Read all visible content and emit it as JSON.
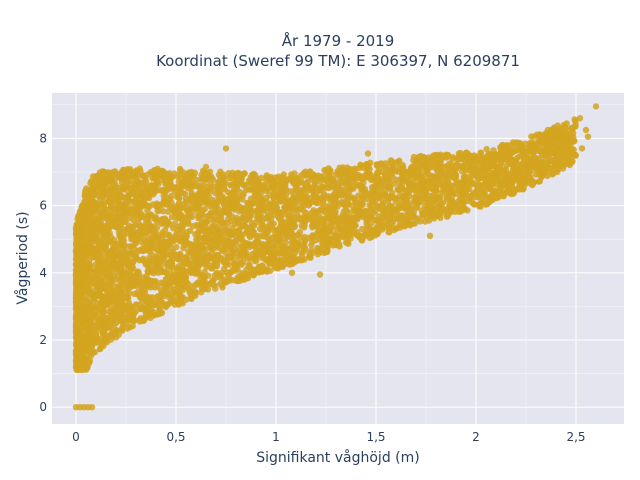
{
  "chart_data": {
    "type": "scatter",
    "title": "År 1979 - 2019",
    "subtitle": "Koordinat (Sweref 99 TM): E 306397, N 6209871",
    "xlabel": "Signifikant våghöjd (m)",
    "ylabel": "Vågperiod (s)",
    "xlim": [
      -0.12,
      2.74
    ],
    "ylim": [
      -0.5,
      9.35
    ],
    "x_ticks": [
      0,
      0.5,
      1,
      1.5,
      2,
      2.5
    ],
    "x_tick_labels": [
      "0",
      "0,5",
      "1",
      "1,5",
      "2",
      "2,5"
    ],
    "y_ticks": [
      0,
      2,
      4,
      6,
      8
    ],
    "y_tick_labels": [
      "0",
      "2",
      "4",
      "6",
      "8"
    ],
    "grid": true,
    "legend": "none",
    "colors": {
      "point": "#d4a520",
      "plot_bg": "#e5e5ef",
      "grid": "#ffffff",
      "text": "#2a3f5f"
    },
    "cloud_envelope": {
      "x": [
        0,
        0.05,
        0.1,
        0.25,
        0.5,
        0.75,
        1.0,
        1.25,
        1.5,
        1.75,
        2.0,
        2.25,
        2.5
      ],
      "y_lower": [
        1.1,
        1.1,
        1.6,
        2.3,
        3.0,
        3.6,
        4.1,
        4.6,
        5.1,
        5.5,
        5.9,
        6.5,
        7.3
      ],
      "y_upper": [
        5.4,
        6.6,
        7.0,
        7.1,
        7.1,
        7.0,
        6.9,
        7.1,
        7.3,
        7.5,
        7.6,
        8.0,
        8.6
      ]
    },
    "outliers": [
      {
        "x": 0.0,
        "y": 0.0
      },
      {
        "x": 0.02,
        "y": 0.0
      },
      {
        "x": 0.04,
        "y": 0.0
      },
      {
        "x": 0.06,
        "y": 0.0
      },
      {
        "x": 0.08,
        "y": 0.0
      },
      {
        "x": 0.75,
        "y": 7.7
      },
      {
        "x": 0.82,
        "y": 6.9
      },
      {
        "x": 0.65,
        "y": 7.15
      },
      {
        "x": 1.46,
        "y": 7.55
      },
      {
        "x": 1.7,
        "y": 7.3
      },
      {
        "x": 1.93,
        "y": 7.45
      },
      {
        "x": 1.77,
        "y": 5.1
      },
      {
        "x": 1.08,
        "y": 4.0
      },
      {
        "x": 1.22,
        "y": 3.95
      },
      {
        "x": 2.35,
        "y": 8.1
      },
      {
        "x": 2.48,
        "y": 8.3
      },
      {
        "x": 2.52,
        "y": 8.6
      },
      {
        "x": 2.55,
        "y": 8.25
      },
      {
        "x": 2.6,
        "y": 8.95
      },
      {
        "x": 2.46,
        "y": 7.25
      },
      {
        "x": 2.53,
        "y": 7.7
      },
      {
        "x": 2.56,
        "y": 8.05
      },
      {
        "x": 2.44,
        "y": 8.4
      }
    ]
  }
}
